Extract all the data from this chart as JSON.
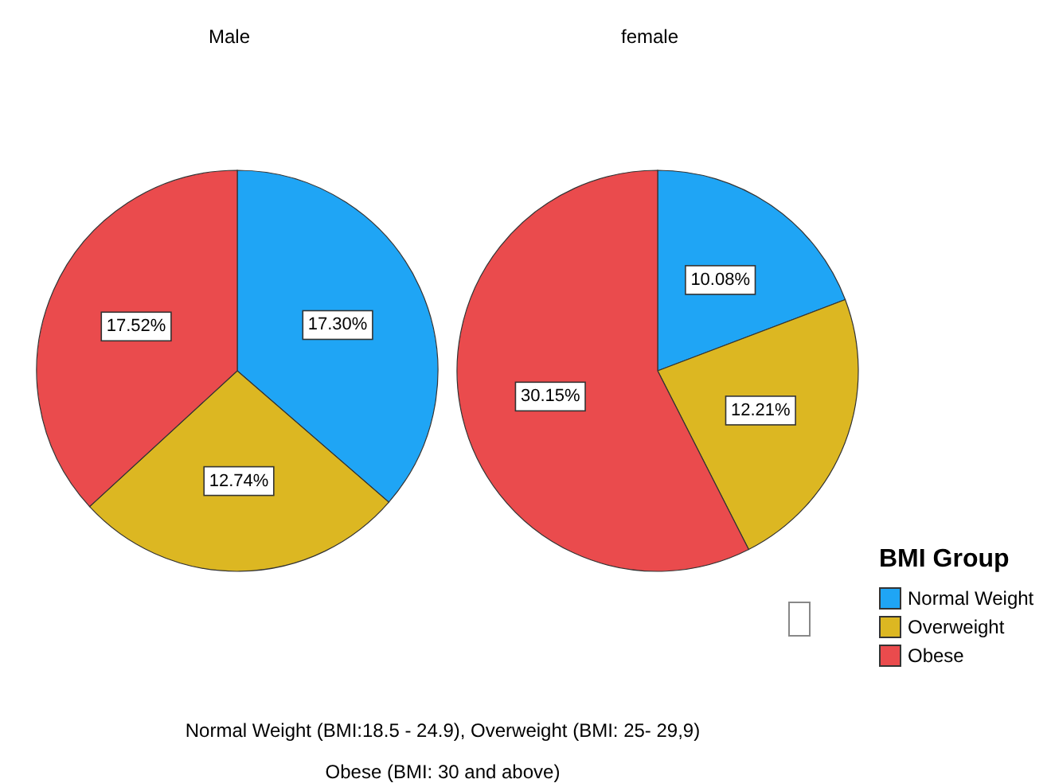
{
  "chart_data": [
    {
      "type": "pie",
      "title": "Male",
      "categories": [
        "Normal Weight",
        "Overweight",
        "Obese"
      ],
      "values": [
        17.3,
        12.74,
        17.52
      ],
      "value_labels": [
        "17.30%",
        "12.74%",
        "17.52%"
      ],
      "colors": [
        "#1fa5f5",
        "#dcb722",
        "#ea4b4d"
      ],
      "legend": "right",
      "legend_title": "BMI Group",
      "annotations": [
        "Normal Weight (BMI:18.5 - 24.9), Overweight (BMI: 25- 29,9)",
        "Obese (BMI: 30 and above)"
      ]
    },
    {
      "type": "pie",
      "title": "female",
      "categories": [
        null,
        null,
        null
      ],
      "values": [
        10.08,
        12.21,
        30.15
      ],
      "value_labels": [
        "10.08%",
        "12.21%",
        "30.15%"
      ],
      "colors": [
        "#1fa5f5",
        "#dcb722",
        "#ea4b4d"
      ]
    }
  ]
}
